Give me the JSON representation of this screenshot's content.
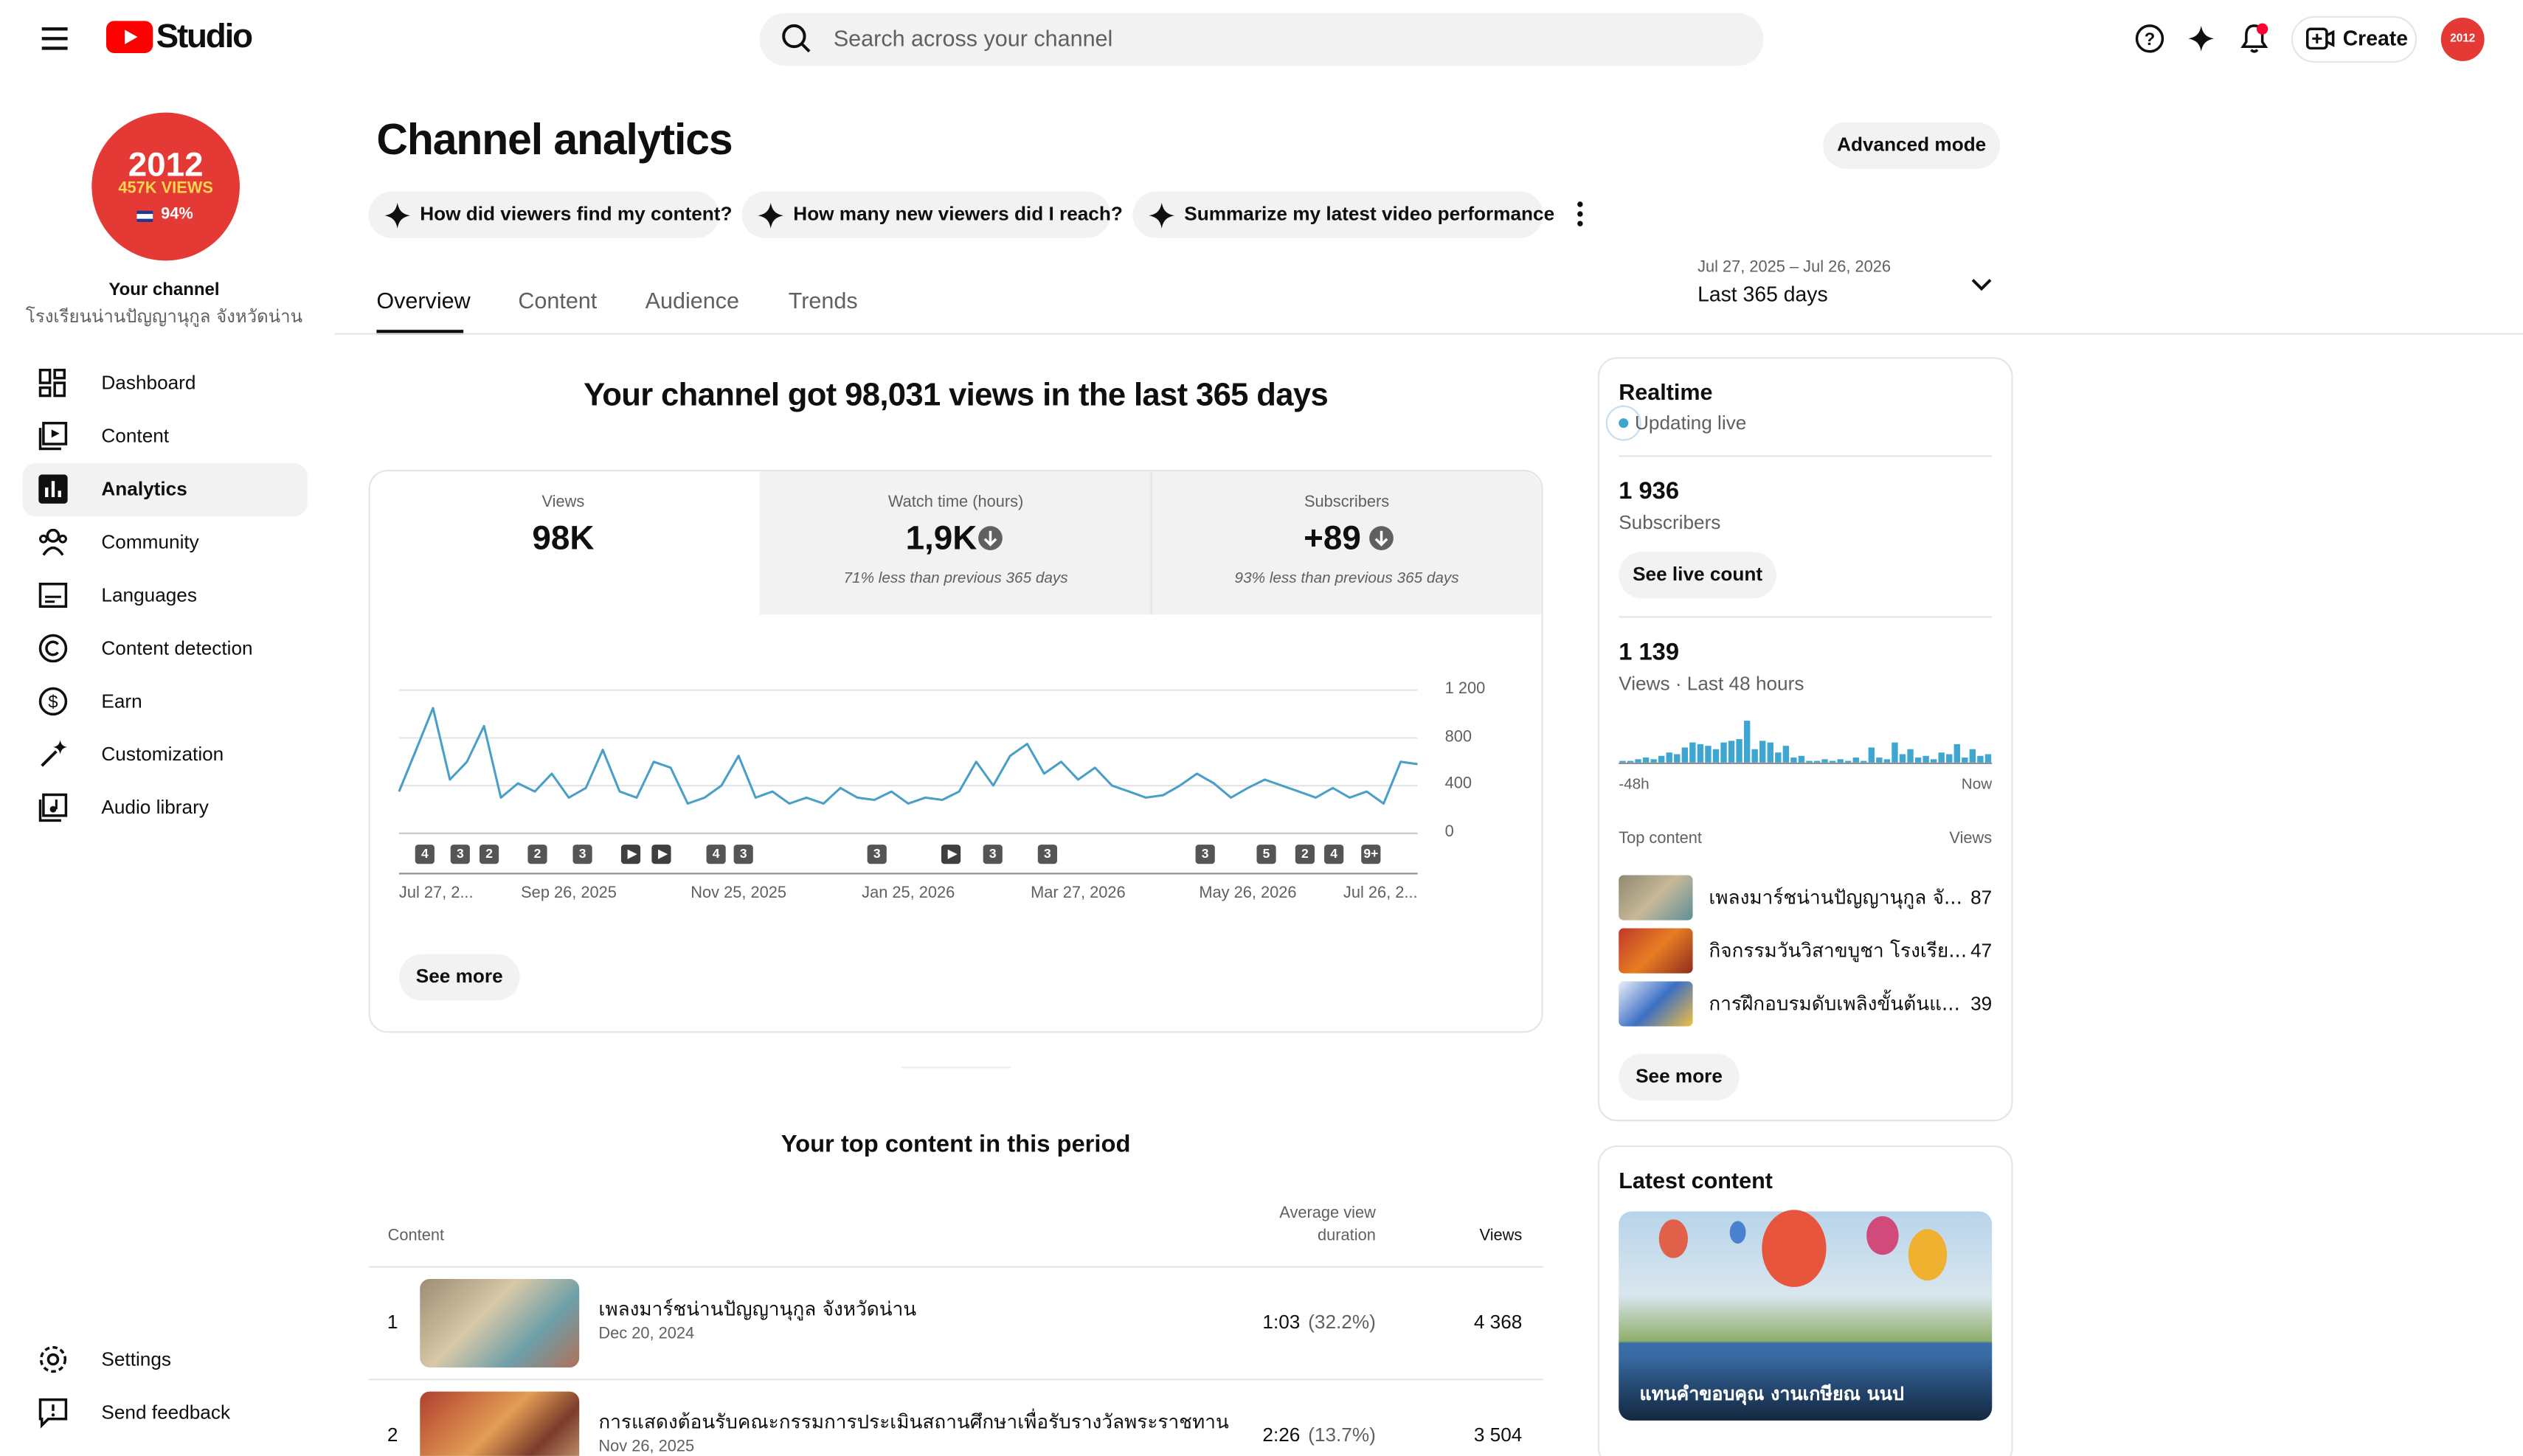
{
  "header": {
    "logo": "Studio",
    "search": "Search across your channel",
    "create": "Create"
  },
  "sidebar": {
    "avatar": {
      "year": "2012",
      "views": "457K VIEWS",
      "percent": "94%"
    },
    "channel_label": "Your channel",
    "channel_name": "โรงเรียนน่านปัญญานุกูล จังหวัดน่าน",
    "nav": [
      "Dashboard",
      "Content",
      "Analytics",
      "Community",
      "Languages",
      "Content detection",
      "Earn",
      "Customization",
      "Audio library"
    ],
    "footer_nav": [
      "Settings",
      "Send feedback"
    ]
  },
  "page": {
    "title": "Channel analytics",
    "advanced_mode": "Advanced mode",
    "prompts": [
      "How did viewers find my content?",
      "How many new viewers did I reach?",
      "Summarize my latest video performance"
    ],
    "tabs": [
      "Overview",
      "Content",
      "Audience",
      "Trends"
    ],
    "date_range": "Jul 27, 2025 – Jul 26, 2026",
    "period": "Last 365 days"
  },
  "overview": {
    "headline": "Your channel got 98,031 views in the last 365 days",
    "metrics": [
      {
        "label": "Views",
        "value": "98K"
      },
      {
        "label": "Watch time (hours)",
        "value": "1,9K",
        "note": "71% less than previous 365 days"
      },
      {
        "label": "Subscribers",
        "value": "+89",
        "note": "93% less than previous 365 days"
      }
    ],
    "see_more": "See more"
  },
  "chart_data": [
    {
      "type": "line",
      "color": "#4a9fc7",
      "grid": true,
      "categories": [
        "Jul 27, 2...",
        null,
        null,
        null,
        null,
        null,
        null,
        null,
        null,
        null,
        "Sep 26, 2025",
        null,
        null,
        null,
        null,
        null,
        null,
        null,
        null,
        null,
        "Nov 25, 2025",
        null,
        null,
        null,
        null,
        null,
        null,
        null,
        null,
        null,
        "Jan 25, 2026",
        null,
        null,
        null,
        null,
        null,
        null,
        null,
        null,
        null,
        "Mar 27, 2026",
        null,
        null,
        null,
        null,
        null,
        null,
        null,
        null,
        null,
        "May 26, 2026",
        null,
        null,
        null,
        null,
        null,
        null,
        null,
        null,
        null,
        "Jul 26, 2..."
      ],
      "values": [
        350,
        700,
        1050,
        450,
        600,
        900,
        300,
        420,
        350,
        500,
        300,
        380,
        700,
        350,
        300,
        600,
        550,
        250,
        300,
        400,
        650,
        300,
        350,
        250,
        300,
        250,
        380,
        300,
        280,
        350,
        250,
        300,
        280,
        350,
        600,
        400,
        650,
        750,
        500,
        600,
        450,
        550,
        400,
        350,
        300,
        320,
        400,
        500,
        420,
        300,
        380,
        450,
        400,
        350,
        300,
        380,
        300,
        350,
        250,
        600,
        580
      ],
      "ylim": [
        0,
        1200
      ],
      "yticks": [
        0,
        400,
        800,
        {
          "value": 1200,
          "label": "1 200"
        }
      ],
      "annotations": [
        "4",
        "3",
        "2",
        "2",
        "3",
        null,
        null,
        "4",
        "3",
        "3",
        null,
        "3",
        "3",
        "3",
        "5",
        "2",
        "4",
        "9+"
      ]
    },
    {
      "type": "bar",
      "color": "#3ea6d0",
      "categories": [
        "-48h",
        null,
        null,
        null,
        null,
        null,
        null,
        null,
        null,
        null,
        null,
        null,
        null,
        null,
        null,
        null,
        null,
        null,
        null,
        null,
        null,
        null,
        null,
        null,
        null,
        null,
        null,
        null,
        null,
        null,
        null,
        null,
        null,
        null,
        null,
        null,
        null,
        null,
        null,
        null,
        null,
        null,
        null,
        null,
        null,
        null,
        null,
        "Now"
      ],
      "values": [
        1,
        1,
        2,
        3,
        2,
        4,
        6,
        5,
        9,
        12,
        11,
        10,
        8,
        12,
        13,
        14,
        25,
        8,
        13,
        12,
        6,
        10,
        3,
        4,
        1,
        1,
        2,
        1,
        2,
        1,
        3,
        1,
        9,
        3,
        2,
        12,
        5,
        8,
        3,
        4,
        2,
        6,
        5,
        11,
        3,
        8,
        4,
        5
      ]
    }
  ],
  "top_content": {
    "title": "Your top content in this period",
    "headers": [
      "Content",
      "Average view duration",
      "Views"
    ],
    "rows": [
      {
        "rank": 1,
        "title": "เพลงมาร์ชน่านปัญญานุกูล จังหวัดน่าน",
        "date": "Dec 20, 2024",
        "duration": "1:03",
        "percent": "(32.2%)",
        "views": "4 368"
      },
      {
        "rank": 2,
        "title": "การแสดงต้อนรับคณะกรรมการประเมินสถานศึกษาเพื่อรับรางวัลพระราชทาน",
        "date": "Nov 26, 2025",
        "duration": "2:26",
        "percent": "(13.7%)",
        "views": "3 504"
      }
    ]
  },
  "realtime": {
    "title": "Realtime",
    "status": "Updating live",
    "subscribers": "1 936",
    "subscribers_label": "Subscribers",
    "live_count": "See live count",
    "views": "1 139",
    "views_label": "Views · Last 48 hours",
    "top_content": "Top content",
    "views_header": "Views",
    "items": [
      {
        "title": "เพลงมาร์ชน่านปัญญานุกูล จั...",
        "views": 87
      },
      {
        "title": "กิจกรรมวันวิสาขบูชา โรงเรีย...",
        "views": 47
      },
      {
        "title": "การฝึกอบรมดับเพลิงขั้นต้นแ...",
        "views": 39
      }
    ],
    "see_more": "See more"
  },
  "latest": {
    "title": "Latest content",
    "caption": "แทนคำขอบคุณ งานเกษียณ นนป"
  }
}
